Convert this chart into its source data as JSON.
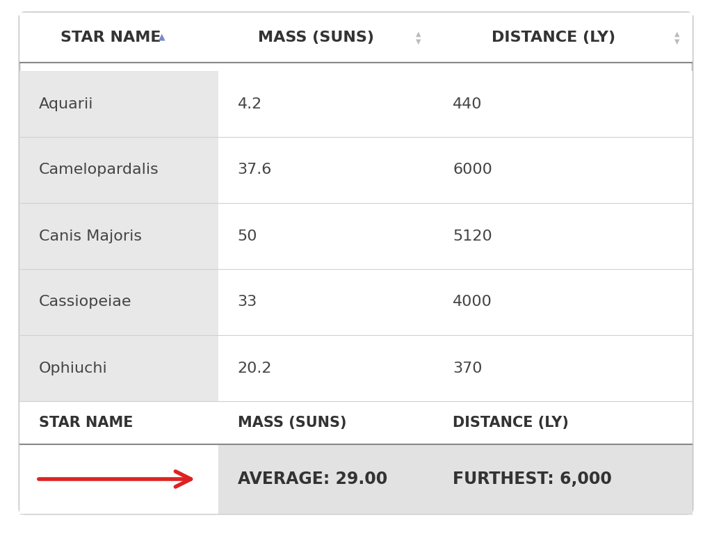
{
  "columns": [
    "STAR NAME",
    "MASS (SUNS)",
    "DISTANCE (LY)"
  ],
  "rows": [
    [
      "Aquarii",
      "4.2",
      "440"
    ],
    [
      "Camelopardalis",
      "37.6",
      "6000"
    ],
    [
      "Canis Majoris",
      "50",
      "5120"
    ],
    [
      "Cassiopeiae",
      "33",
      "4000"
    ],
    [
      "Ophiuchi",
      "20.2",
      "370"
    ]
  ],
  "footer_labels": [
    "STAR NAME",
    "MASS (SUNS)",
    "DISTANCE (LY)"
  ],
  "summary_row": [
    "",
    "AVERAGE: 29.00",
    "FURTHEST: 6,000"
  ],
  "bg_white": "#ffffff",
  "bg_light_gray": "#eeeeee",
  "bg_summary_gray": "#e2e2e2",
  "bg_col0_gray": "#e8e8e8",
  "border_light": "#d0d0d0",
  "border_dark": "#888888",
  "outer_border_color": "#c0c0c0",
  "text_header": "#333333",
  "text_body": "#444444",
  "text_summary": "#333333",
  "arrow_color": "#dd2222",
  "sort_arrow_blue": "#7788cc",
  "sort_arrow_gray": "#bbbbbb",
  "header_fontsize": 16,
  "body_fontsize": 16,
  "summary_fontsize": 17
}
